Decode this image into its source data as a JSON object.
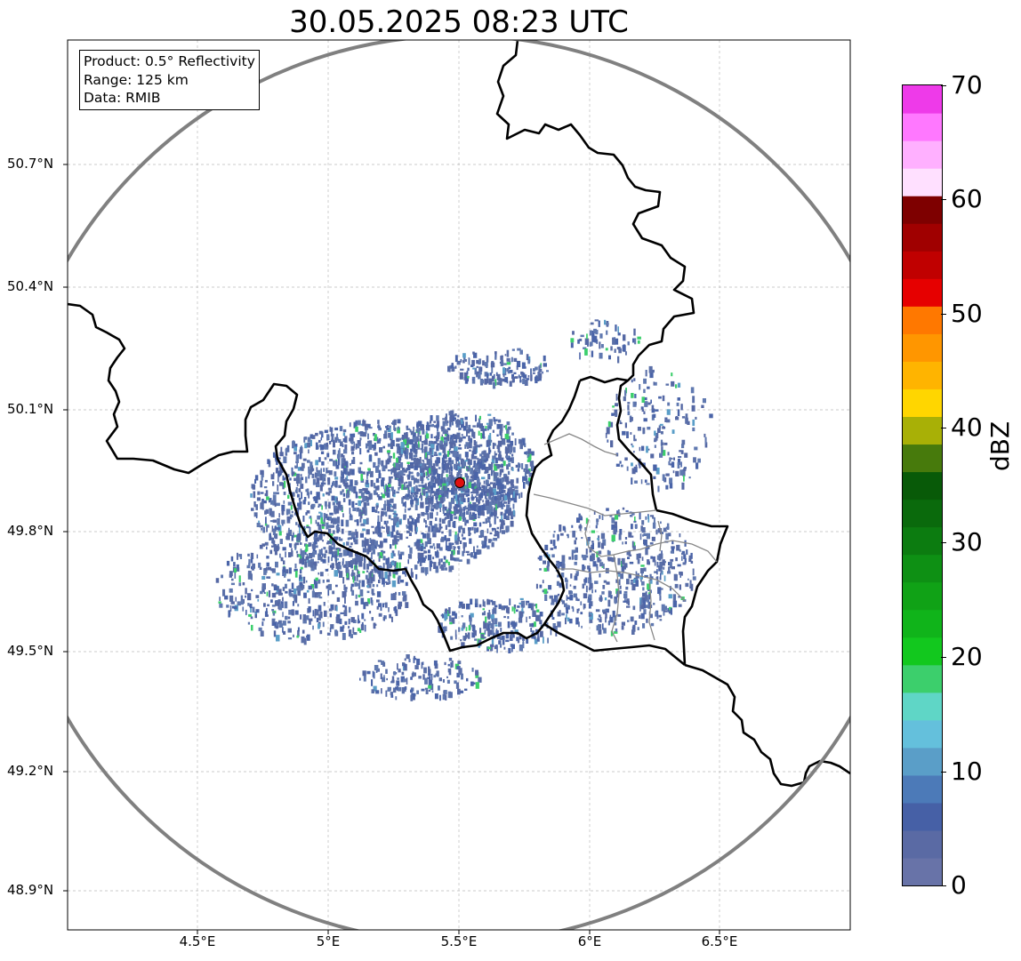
{
  "title": "30.05.2025 08:23 UTC",
  "info": {
    "product": "Product: 0.5° Reflectivity",
    "range": "Range: 125 km",
    "data": "Data: RMIB"
  },
  "axes": {
    "lon_ticks": [
      "4.5°E",
      "5°E",
      "5.5°E",
      "6°E",
      "6.5°E"
    ],
    "lat_ticks": [
      "50.7°N",
      "50.4°N",
      "50.1°N",
      "49.8°N",
      "49.5°N",
      "49.2°N",
      "48.9°N"
    ]
  },
  "colorbar": {
    "label": "dBZ",
    "ticks": [
      "0",
      "10",
      "20",
      "30",
      "40",
      "50",
      "60",
      "70"
    ],
    "colors": [
      "#6873a8",
      "#5a6aa4",
      "#4660a6",
      "#4c7ab8",
      "#5a9ec8",
      "#64c0dc",
      "#5fd6c6",
      "#3ccf6c",
      "#12c81e",
      "#10b41a",
      "#10a216",
      "#0e9014",
      "#0c7c10",
      "#0a6a0c",
      "#085a08",
      "#477a0c",
      "#a8b006",
      "#ffd600",
      "#ffb400",
      "#ff9600",
      "#ff7800",
      "#e60000",
      "#c00000",
      "#a00000",
      "#7e0000",
      "#ffe0ff",
      "#ffb0ff",
      "#ff78ff",
      "#ee3ae9"
    ]
  },
  "colors": {
    "echo": "#5a6fa8",
    "border": "#000000",
    "range_ring": "#808080",
    "radar_site": "#e01010"
  }
}
